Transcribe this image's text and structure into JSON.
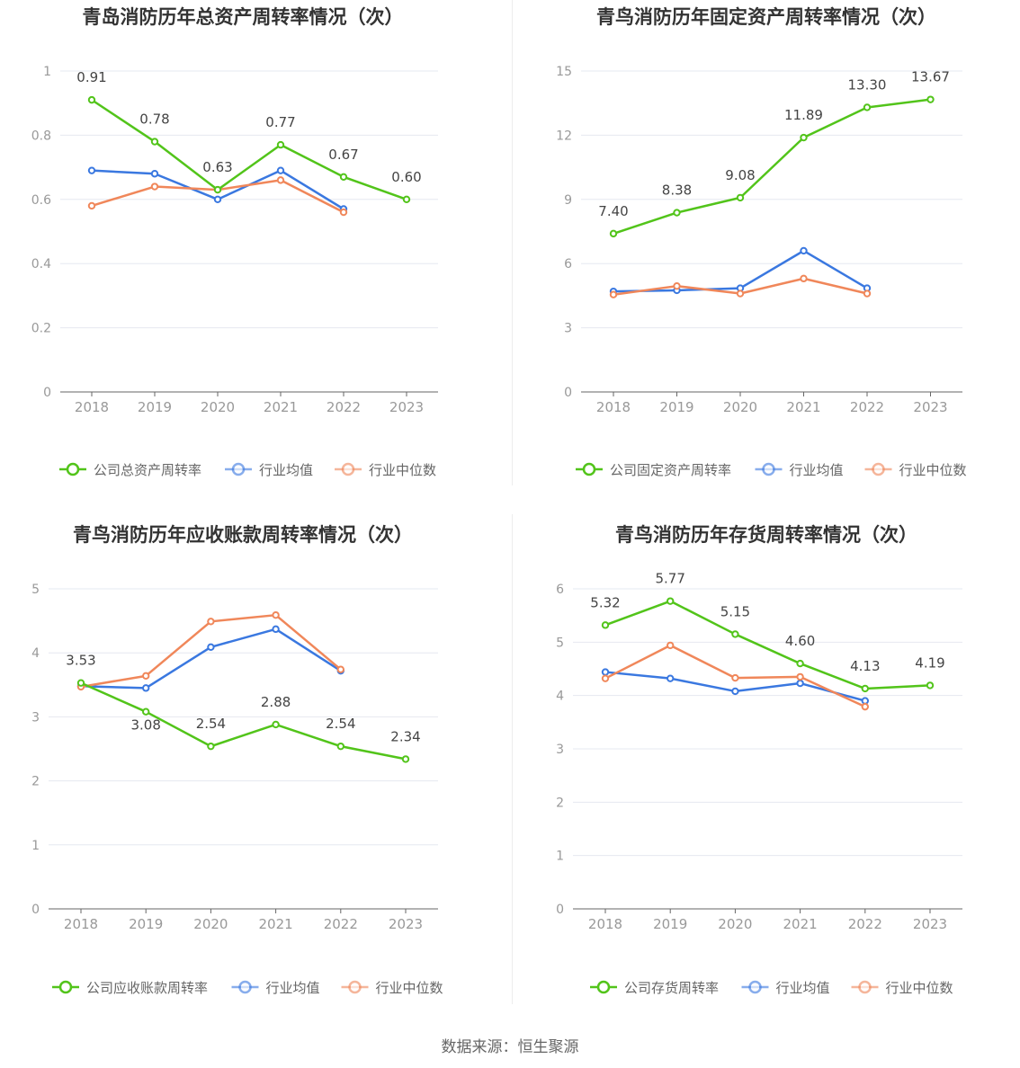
{
  "source_label": "数据来源：恒生聚源",
  "colors": {
    "company": "#52c41a",
    "avg": "#3a78e0",
    "median": "#f0875a",
    "grid": "#e6e8f0",
    "axis": "#666666",
    "tick": "#999999",
    "title": "#333333"
  },
  "chart_data": [
    {
      "type": "line",
      "title": "青岛消防历年总资产周转率情况（次）",
      "categories": [
        "2018",
        "2019",
        "2020",
        "2021",
        "2022",
        "2023"
      ],
      "ylim": [
        0,
        1
      ],
      "yticks": [
        0,
        0.2,
        0.4,
        0.6,
        0.8,
        1
      ],
      "ytick_labels": [
        "0",
        "0.2",
        "0.4",
        "0.6",
        "0.8",
        "1"
      ],
      "grid": true,
      "legend_position": "bottom",
      "series": [
        {
          "name": "公司总资产周转率",
          "color": "#52c41a",
          "values": [
            0.91,
            0.78,
            0.63,
            0.77,
            0.67,
            0.6
          ],
          "labels": [
            "0.91",
            "0.78",
            "0.63",
            "0.77",
            "0.67",
            "0.60"
          ]
        },
        {
          "name": "行业均值",
          "color": "#3a78e0",
          "values": [
            0.69,
            0.68,
            0.6,
            0.69,
            0.57,
            null
          ]
        },
        {
          "name": "行业中位数",
          "color": "#f0875a",
          "values": [
            0.58,
            0.64,
            0.63,
            0.66,
            0.56,
            null
          ]
        }
      ]
    },
    {
      "type": "line",
      "title": "青鸟消防历年固定资产周转率情况（次）",
      "categories": [
        "2018",
        "2019",
        "2020",
        "2021",
        "2022",
        "2023"
      ],
      "ylim": [
        0,
        15
      ],
      "yticks": [
        0,
        3,
        6,
        9,
        12,
        15
      ],
      "ytick_labels": [
        "0",
        "3",
        "6",
        "9",
        "12",
        "15"
      ],
      "grid": true,
      "legend_position": "bottom",
      "series": [
        {
          "name": "公司固定资产周转率",
          "color": "#52c41a",
          "values": [
            7.4,
            8.38,
            9.08,
            11.89,
            13.3,
            13.67
          ],
          "labels": [
            "7.40",
            "8.38",
            "9.08",
            "11.89",
            "13.30",
            "13.67"
          ]
        },
        {
          "name": "行业均值",
          "color": "#3a78e0",
          "values": [
            4.7,
            4.75,
            4.85,
            6.6,
            4.85,
            null
          ]
        },
        {
          "name": "行业中位数",
          "color": "#f0875a",
          "values": [
            4.55,
            4.95,
            4.6,
            5.3,
            4.6,
            null
          ]
        }
      ]
    },
    {
      "type": "line",
      "title": "青鸟消防历年应收账款周转率情况（次）",
      "categories": [
        "2018",
        "2019",
        "2020",
        "2021",
        "2022",
        "2023"
      ],
      "ylim": [
        0,
        5
      ],
      "yticks": [
        0,
        1,
        2,
        3,
        4,
        5
      ],
      "ytick_labels": [
        "0",
        "1",
        "2",
        "3",
        "4",
        "5"
      ],
      "grid": true,
      "legend_position": "bottom",
      "series": [
        {
          "name": "公司应收账款周转率",
          "color": "#52c41a",
          "values": [
            3.53,
            3.08,
            2.54,
            2.88,
            2.54,
            2.34
          ],
          "labels": [
            "3.53",
            "3.08",
            "2.54",
            "2.88",
            "2.54",
            "2.34"
          ]
        },
        {
          "name": "行业均值",
          "color": "#3a78e0",
          "values": [
            3.48,
            3.45,
            4.09,
            4.37,
            3.72,
            null
          ]
        },
        {
          "name": "行业中位数",
          "color": "#f0875a",
          "values": [
            3.47,
            3.64,
            4.49,
            4.59,
            3.74,
            null
          ]
        }
      ]
    },
    {
      "type": "line",
      "title": "青鸟消防历年存货周转率情况（次）",
      "categories": [
        "2018",
        "2019",
        "2020",
        "2021",
        "2022",
        "2023"
      ],
      "ylim": [
        0,
        6
      ],
      "yticks": [
        0,
        1,
        2,
        3,
        4,
        5,
        6
      ],
      "ytick_labels": [
        "0",
        "1",
        "2",
        "3",
        "4",
        "5",
        "6"
      ],
      "grid": true,
      "legend_position": "bottom",
      "series": [
        {
          "name": "公司存货周转率",
          "color": "#52c41a",
          "values": [
            5.32,
            5.77,
            5.15,
            4.6,
            4.13,
            4.19
          ],
          "labels": [
            "5.32",
            "5.77",
            "5.15",
            "4.60",
            "4.13",
            "4.19"
          ]
        },
        {
          "name": "行业均值",
          "color": "#3a78e0",
          "values": [
            4.44,
            4.32,
            4.08,
            4.23,
            3.9,
            null
          ]
        },
        {
          "name": "行业中位数",
          "color": "#f0875a",
          "values": [
            4.32,
            4.94,
            4.33,
            4.35,
            3.79,
            null
          ]
        }
      ]
    }
  ]
}
